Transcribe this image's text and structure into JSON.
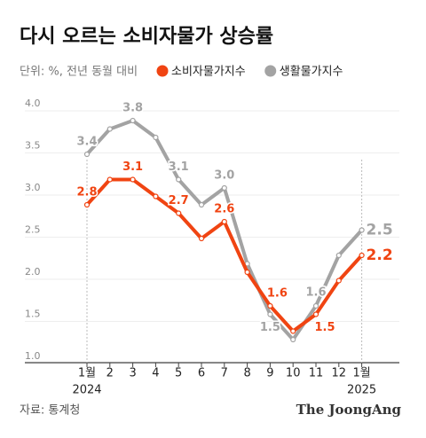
{
  "chart_data": {
    "type": "line",
    "title": "다시 오르는 소비자물가 상승률",
    "subtitle": "단위: %, 전년 동월 대비",
    "source": "자료: 통계청",
    "brand": "The JoongAng",
    "categories": [
      "1월",
      "2",
      "3",
      "4",
      "5",
      "6",
      "7",
      "8",
      "9",
      "10",
      "11",
      "12",
      "1월"
    ],
    "year_labels": [
      "2024",
      null,
      null,
      null,
      null,
      null,
      null,
      null,
      null,
      null,
      null,
      null,
      "2025"
    ],
    "series": [
      {
        "name": "생활물가지수",
        "color": "#a3a3a3",
        "values": [
          3.4,
          3.7,
          3.8,
          3.6,
          3.1,
          2.8,
          3.0,
          2.1,
          1.5,
          1.2,
          1.6,
          2.2,
          2.5
        ],
        "value_labels": [
          "3.4",
          null,
          "3.8",
          null,
          "3.1",
          null,
          "3.0",
          null,
          "1.5",
          null,
          "1.6",
          null,
          "2.5"
        ]
      },
      {
        "name": "소비자물가지수",
        "color": "#f04412",
        "values": [
          2.8,
          3.1,
          3.1,
          2.9,
          2.7,
          2.4,
          2.6,
          2.0,
          1.6,
          1.3,
          1.5,
          1.9,
          2.2
        ],
        "value_labels": [
          "2.8",
          null,
          "3.1",
          null,
          "2.7",
          null,
          "2.6",
          null,
          "1.6",
          null,
          "1.5",
          null,
          "2.2"
        ]
      }
    ],
    "legend_order": [
      1,
      0
    ],
    "ylim": [
      1.0,
      4.0
    ],
    "yticks": [
      {
        "value": 1.0,
        "label": "1.0"
      },
      1.5,
      {
        "value": 2.0,
        "label": "2.0"
      },
      2.5,
      {
        "value": 3.0,
        "label": "3.0"
      },
      3.5,
      {
        "value": 4.0,
        "label": "4.0"
      }
    ],
    "grid": true
  }
}
